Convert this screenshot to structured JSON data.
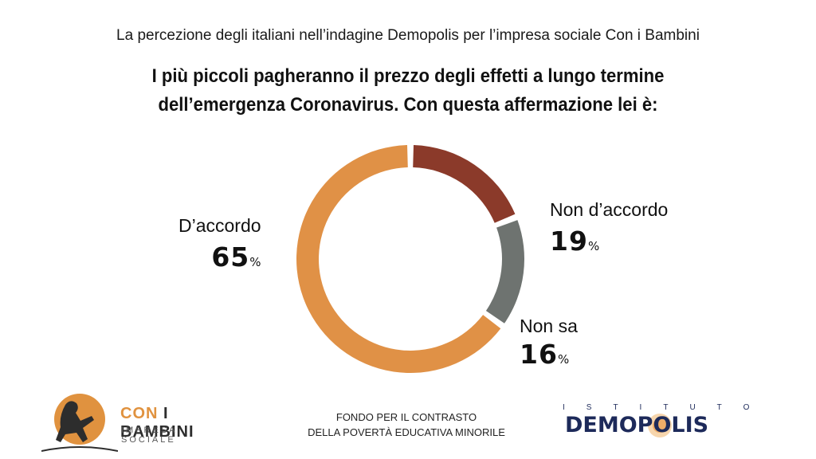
{
  "header": {
    "subtitle": "La percezione degli italiani nell’indagine Demopolis per l’impresa sociale Con i Bambini",
    "title_line1": "I più piccoli pagheranno il prezzo degli effetti a lungo termine",
    "title_line2": "dell’emergenza Coronavirus. Con questa affermazione lei è:"
  },
  "chart_data": {
    "type": "pie",
    "style": "donut",
    "categories": [
      "D’accordo",
      "Non d’accordo",
      "Non sa"
    ],
    "values": [
      65,
      19,
      16
    ],
    "value_labels": [
      "65",
      "19",
      "16"
    ],
    "unit": "%",
    "colors": [
      "#e09146",
      "#8b3a2a",
      "#6e7370"
    ],
    "title": "",
    "legend": "none"
  },
  "footer": {
    "left_logo_brand_con": "CON",
    "left_logo_brand_rest": "I BAMBINI",
    "left_logo_tagline": "IMPRESA SOCIALE",
    "center_line1": "FONDO PER IL CONTRASTO",
    "center_line2": "DELLA POVERTÀ EDUCATIVA MINORILE",
    "right_logo_top": "ISTITUTO",
    "right_logo_name": "DEMOPOLIS"
  }
}
